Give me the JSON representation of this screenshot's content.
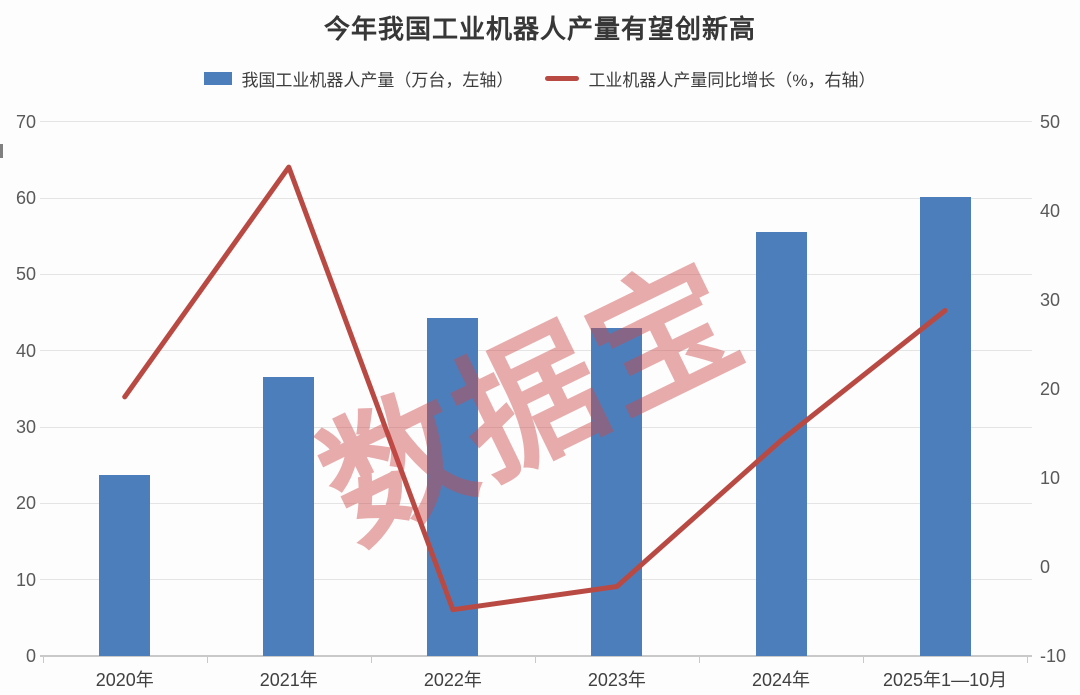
{
  "page": {
    "background": "#fdfdfd"
  },
  "chart_data": {
    "type": "bar+line",
    "title": "今年我国工业机器人产量有望创新高",
    "categories": [
      "2020年",
      "2021年",
      "2022年",
      "2023年",
      "2024年",
      "2025年1—10月"
    ],
    "series": [
      {
        "name": "我国工业机器人产量（万台，左轴）",
        "type": "bar",
        "axis": "left",
        "color": "#4d7ebc",
        "values": [
          23.7,
          36.6,
          44.3,
          43.0,
          55.6,
          60.2
        ]
      },
      {
        "name": "工业机器人产量同比增长（%，右轴）",
        "type": "line",
        "axis": "right",
        "color": "#b94a43",
        "values": [
          19.1,
          44.9,
          -4.8,
          -2.2,
          14.2,
          28.8
        ]
      }
    ],
    "left_axis": {
      "min": 0,
      "max": 70,
      "step": 10,
      "ticks": [
        0,
        10,
        20,
        30,
        40,
        50,
        60,
        70
      ]
    },
    "right_axis": {
      "min": -10,
      "max": 50,
      "step": 10,
      "ticks": [
        -10,
        0,
        10,
        20,
        30,
        40,
        50
      ]
    },
    "grid": true,
    "legend_position": "top",
    "watermark": {
      "text": "数据宝",
      "color": "rgba(205,70,70,0.45)",
      "rotation_deg": -26
    }
  }
}
